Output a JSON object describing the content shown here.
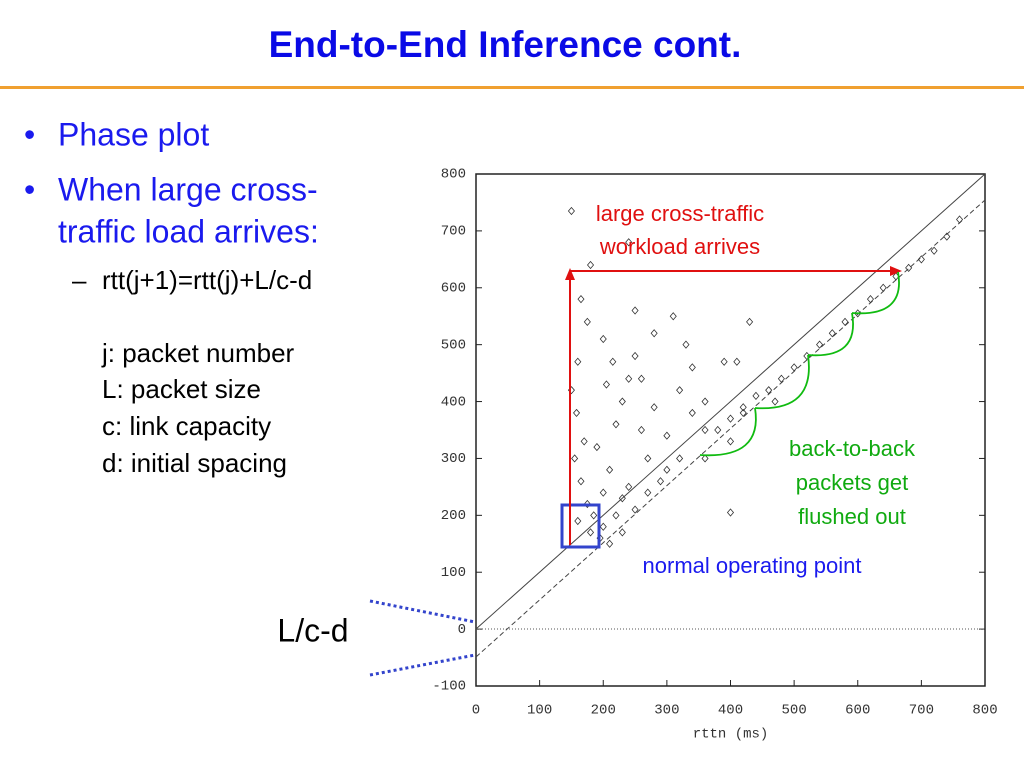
{
  "slide": {
    "title": "End-to-End Inference cont.",
    "bullets": [
      "Phase plot",
      [
        "When large cross-",
        "traffic load arrives:"
      ]
    ],
    "sub_bullet": "rtt(j+1)=rtt(j)+L/c-d",
    "definitions": [
      "j: packet number",
      "L: packet size",
      "c: link capacity",
      "d: initial spacing"
    ],
    "side_label": "L/c-d"
  },
  "chart_data": {
    "type": "scatter",
    "x_label": "rttn (ms)",
    "xlim": [
      0,
      800
    ],
    "ylim": [
      -100,
      800
    ],
    "xticks": [
      0,
      100,
      200,
      300,
      400,
      500,
      600,
      700,
      800
    ],
    "yticks": [
      -100,
      0,
      100,
      200,
      300,
      400,
      500,
      600,
      700,
      800
    ],
    "color": "#333333",
    "annotations": [
      [
        "large cross-traffic",
        "workload arrives"
      ],
      [
        "back-to-back",
        "packets get",
        "flushed out"
      ],
      "normal operating point"
    ],
    "x": [
      150,
      165,
      175,
      160,
      150,
      158,
      170,
      155,
      165,
      175,
      160,
      180,
      195,
      185,
      200,
      210,
      190,
      220,
      230,
      240,
      250,
      205,
      215,
      260,
      270,
      280,
      300,
      290,
      250,
      230,
      320,
      340,
      360,
      380,
      400,
      420,
      440,
      460,
      480,
      500,
      520,
      540,
      560,
      580,
      600,
      620,
      640,
      660,
      680,
      700,
      720,
      740,
      760,
      330,
      390,
      250,
      280,
      310,
      180,
      240,
      360,
      400,
      420,
      200,
      260,
      340,
      410,
      430,
      200,
      220,
      240,
      270,
      300,
      320,
      400,
      210,
      230,
      360,
      470
    ],
    "y": [
      735,
      580,
      540,
      470,
      420,
      380,
      330,
      300,
      260,
      220,
      190,
      170,
      160,
      200,
      240,
      280,
      320,
      360,
      400,
      440,
      480,
      430,
      470,
      350,
      300,
      390,
      340,
      260,
      210,
      230,
      420,
      460,
      400,
      350,
      370,
      390,
      410,
      420,
      440,
      460,
      480,
      500,
      520,
      540,
      555,
      580,
      600,
      620,
      635,
      650,
      665,
      690,
      720,
      500,
      470,
      560,
      520,
      550,
      640,
      680,
      300,
      330,
      380,
      510,
      440,
      380,
      470,
      540,
      180,
      200,
      250,
      240,
      280,
      300,
      205,
      150,
      170,
      350,
      400
    ]
  }
}
